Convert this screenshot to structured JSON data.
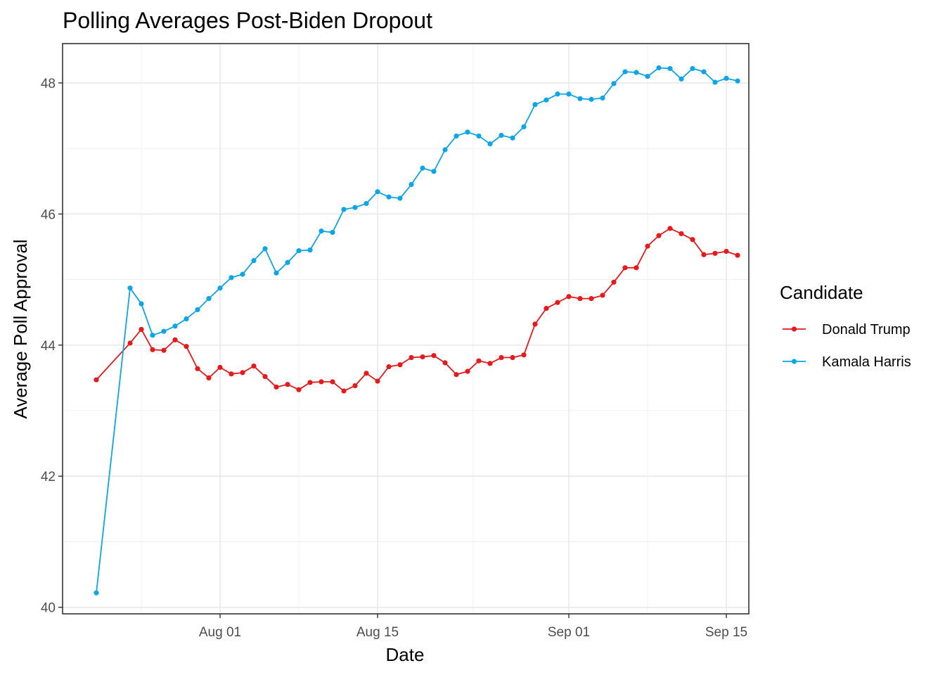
{
  "chart_data": {
    "type": "line",
    "title": "Polling Averages Post-Biden Dropout",
    "xlabel": "Date",
    "ylabel": "Average Poll Approval",
    "x_tick_labels": [
      {
        "label": "Aug 01",
        "date": "2024-08-01"
      },
      {
        "label": "Aug 15",
        "date": "2024-08-15"
      },
      {
        "label": "Sep 01",
        "date": "2024-09-01"
      },
      {
        "label": "Sep 15",
        "date": "2024-09-15"
      }
    ],
    "y_ticks": [
      40,
      42,
      44,
      46,
      48
    ],
    "xlim": [
      "2024-07-18",
      "2024-09-17"
    ],
    "ylim": [
      39.9,
      48.6
    ],
    "grid": true,
    "legend": {
      "title": "Candidate",
      "position": "right"
    },
    "series": [
      {
        "name": "Donald Trump",
        "color": "#e41a1c",
        "points": [
          [
            "2024-07-21",
            43.47
          ],
          [
            "2024-07-24",
            44.03
          ],
          [
            "2024-07-25",
            44.24
          ],
          [
            "2024-07-26",
            43.93
          ],
          [
            "2024-07-27",
            43.92
          ],
          [
            "2024-07-28",
            44.08
          ],
          [
            "2024-07-29",
            43.98
          ],
          [
            "2024-07-30",
            43.64
          ],
          [
            "2024-07-31",
            43.5
          ],
          [
            "2024-08-01",
            43.66
          ],
          [
            "2024-08-02",
            43.56
          ],
          [
            "2024-08-03",
            43.58
          ],
          [
            "2024-08-04",
            43.68
          ],
          [
            "2024-08-05",
            43.52
          ],
          [
            "2024-08-06",
            43.36
          ],
          [
            "2024-08-07",
            43.4
          ],
          [
            "2024-08-08",
            43.32
          ],
          [
            "2024-08-09",
            43.43
          ],
          [
            "2024-08-10",
            43.44
          ],
          [
            "2024-08-11",
            43.44
          ],
          [
            "2024-08-12",
            43.3
          ],
          [
            "2024-08-13",
            43.38
          ],
          [
            "2024-08-14",
            43.57
          ],
          [
            "2024-08-15",
            43.45
          ],
          [
            "2024-08-16",
            43.67
          ],
          [
            "2024-08-17",
            43.7
          ],
          [
            "2024-08-18",
            43.81
          ],
          [
            "2024-08-19",
            43.82
          ],
          [
            "2024-08-20",
            43.84
          ],
          [
            "2024-08-21",
            43.73
          ],
          [
            "2024-08-22",
            43.55
          ],
          [
            "2024-08-23",
            43.6
          ],
          [
            "2024-08-24",
            43.76
          ],
          [
            "2024-08-25",
            43.72
          ],
          [
            "2024-08-26",
            43.81
          ],
          [
            "2024-08-27",
            43.81
          ],
          [
            "2024-08-28",
            43.85
          ],
          [
            "2024-08-29",
            44.32
          ],
          [
            "2024-08-30",
            44.56
          ],
          [
            "2024-08-31",
            44.65
          ],
          [
            "2024-09-01",
            44.74
          ],
          [
            "2024-09-02",
            44.71
          ],
          [
            "2024-09-03",
            44.71
          ],
          [
            "2024-09-04",
            44.76
          ],
          [
            "2024-09-05",
            44.96
          ],
          [
            "2024-09-06",
            45.18
          ],
          [
            "2024-09-07",
            45.18
          ],
          [
            "2024-09-08",
            45.51
          ],
          [
            "2024-09-09",
            45.67
          ],
          [
            "2024-09-10",
            45.78
          ],
          [
            "2024-09-11",
            45.7
          ],
          [
            "2024-09-12",
            45.61
          ],
          [
            "2024-09-13",
            45.38
          ],
          [
            "2024-09-14",
            45.4
          ],
          [
            "2024-09-15",
            45.43
          ],
          [
            "2024-09-16",
            45.37
          ]
        ]
      },
      {
        "name": "Kamala Harris",
        "color": "#0ea5e6",
        "points": [
          [
            "2024-07-21",
            40.22
          ],
          [
            "2024-07-24",
            44.87
          ],
          [
            "2024-07-25",
            44.63
          ],
          [
            "2024-07-26",
            44.15
          ],
          [
            "2024-07-27",
            44.21
          ],
          [
            "2024-07-28",
            44.29
          ],
          [
            "2024-07-29",
            44.4
          ],
          [
            "2024-07-30",
            44.54
          ],
          [
            "2024-07-31",
            44.71
          ],
          [
            "2024-08-01",
            44.87
          ],
          [
            "2024-08-02",
            45.03
          ],
          [
            "2024-08-03",
            45.08
          ],
          [
            "2024-08-04",
            45.29
          ],
          [
            "2024-08-05",
            45.47
          ],
          [
            "2024-08-06",
            45.1
          ],
          [
            "2024-08-07",
            45.26
          ],
          [
            "2024-08-08",
            45.44
          ],
          [
            "2024-08-09",
            45.45
          ],
          [
            "2024-08-10",
            45.74
          ],
          [
            "2024-08-11",
            45.72
          ],
          [
            "2024-08-12",
            46.07
          ],
          [
            "2024-08-13",
            46.1
          ],
          [
            "2024-08-14",
            46.16
          ],
          [
            "2024-08-15",
            46.34
          ],
          [
            "2024-08-16",
            46.26
          ],
          [
            "2024-08-17",
            46.24
          ],
          [
            "2024-08-18",
            46.45
          ],
          [
            "2024-08-19",
            46.7
          ],
          [
            "2024-08-20",
            46.65
          ],
          [
            "2024-08-21",
            46.98
          ],
          [
            "2024-08-22",
            47.19
          ],
          [
            "2024-08-23",
            47.25
          ],
          [
            "2024-08-24",
            47.19
          ],
          [
            "2024-08-25",
            47.07
          ],
          [
            "2024-08-26",
            47.2
          ],
          [
            "2024-08-27",
            47.16
          ],
          [
            "2024-08-28",
            47.33
          ],
          [
            "2024-08-29",
            47.67
          ],
          [
            "2024-08-30",
            47.74
          ],
          [
            "2024-08-31",
            47.83
          ],
          [
            "2024-09-01",
            47.83
          ],
          [
            "2024-09-02",
            47.76
          ],
          [
            "2024-09-03",
            47.75
          ],
          [
            "2024-09-04",
            47.77
          ],
          [
            "2024-09-05",
            47.99
          ],
          [
            "2024-09-06",
            48.17
          ],
          [
            "2024-09-07",
            48.16
          ],
          [
            "2024-09-08",
            48.1
          ],
          [
            "2024-09-09",
            48.23
          ],
          [
            "2024-09-10",
            48.22
          ],
          [
            "2024-09-11",
            48.06
          ],
          [
            "2024-09-12",
            48.22
          ],
          [
            "2024-09-13",
            48.17
          ],
          [
            "2024-09-14",
            48.01
          ],
          [
            "2024-09-15",
            48.07
          ],
          [
            "2024-09-16",
            48.03
          ]
        ]
      }
    ]
  }
}
